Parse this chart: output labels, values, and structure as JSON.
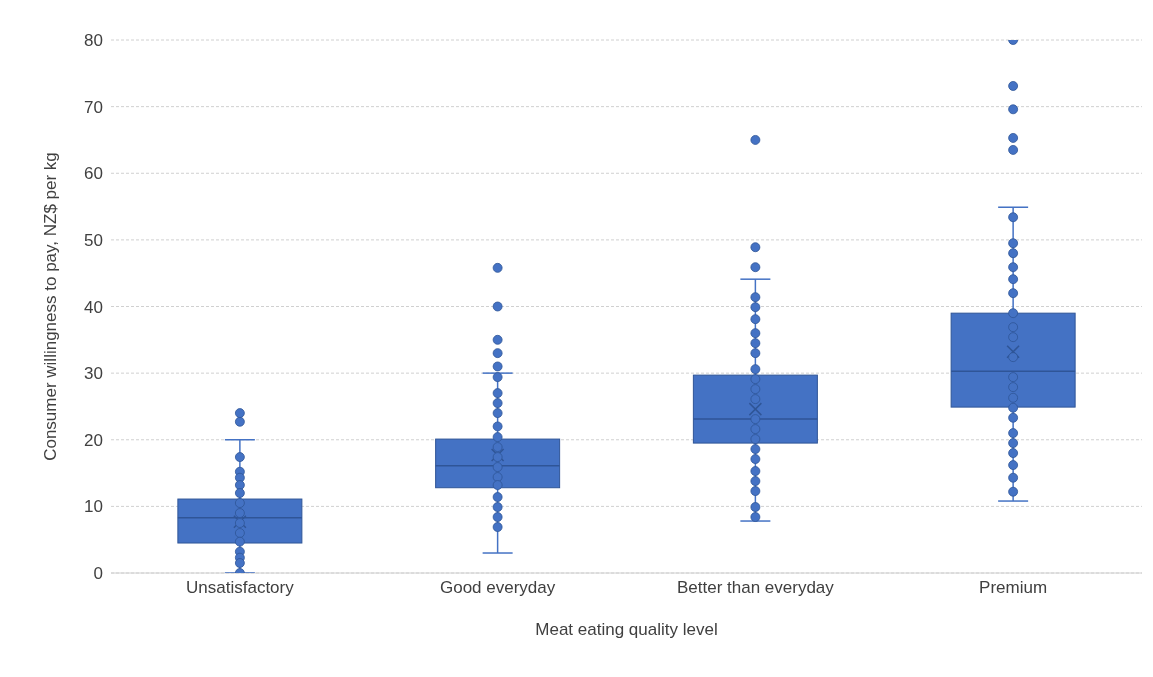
{
  "chart_data": {
    "type": "box",
    "xlabel": "Meat eating quality level",
    "ylabel": "Consumer willingness to pay, NZ$ per kg",
    "categories": [
      "Unsatisfactory",
      "Good everyday",
      "Better than everyday",
      "Premium"
    ],
    "ylim": [
      0,
      80
    ],
    "yticks": [
      0,
      10,
      20,
      30,
      40,
      50,
      60,
      70,
      80
    ],
    "grid": "y",
    "color": "#4472c4",
    "boxes": [
      {
        "low": 0,
        "q1": 4.5,
        "median": 8.3,
        "q3": 11.1,
        "high": 20,
        "mean": 7.7,
        "outliers": [
          22.7,
          24
        ]
      },
      {
        "low": 3,
        "q1": 12.8,
        "median": 16.1,
        "q3": 20.1,
        "high": 30,
        "mean": 17.7,
        "outliers": [
          31,
          33,
          35,
          40,
          45.8
        ]
      },
      {
        "low": 7.8,
        "q1": 19.5,
        "median": 23.1,
        "q3": 29.7,
        "high": 44.1,
        "mean": 24.6,
        "outliers": [
          45.9,
          48.9,
          65
        ]
      },
      {
        "low": 10.8,
        "q1": 24.9,
        "median": 30.3,
        "q3": 39,
        "high": 54.9,
        "mean": 33.2,
        "outliers": [
          63.5,
          65.3,
          69.6,
          73.1,
          80
        ]
      }
    ],
    "series": [
      {
        "type": "scatter",
        "color": "#4472c4",
        "marker": "circle",
        "x": [
          "Unsatisfactory",
          "Unsatisfactory",
          "Unsatisfactory",
          "Unsatisfactory",
          "Unsatisfactory",
          "Unsatisfactory",
          "Unsatisfactory",
          "Unsatisfactory",
          "Unsatisfactory",
          "Unsatisfactory",
          "Unsatisfactory",
          "Unsatisfactory",
          "Unsatisfactory",
          "Unsatisfactory",
          "Good everyday",
          "Good everyday",
          "Good everyday",
          "Good everyday",
          "Good everyday",
          "Good everyday",
          "Good everyday",
          "Good everyday",
          "Good everyday",
          "Good everyday",
          "Good everyday",
          "Good everyday",
          "Good everyday",
          "Good everyday",
          "Good everyday",
          "Better than everyday",
          "Better than everyday",
          "Better than everyday",
          "Better than everyday",
          "Better than everyday",
          "Better than everyday",
          "Better than everyday",
          "Better than everyday",
          "Better than everyday",
          "Better than everyday",
          "Better than everyday",
          "Better than everyday",
          "Better than everyday",
          "Better than everyday",
          "Better than everyday",
          "Better than everyday",
          "Better than everyday",
          "Better than everyday",
          "Better than everyday",
          "Better than everyday",
          "Premium",
          "Premium",
          "Premium",
          "Premium",
          "Premium",
          "Premium",
          "Premium",
          "Premium",
          "Premium",
          "Premium",
          "Premium",
          "Premium",
          "Premium",
          "Premium",
          "Premium",
          "Premium",
          "Premium",
          "Premium",
          "Premium",
          "Premium",
          "Premium"
        ],
        "values": [
          17.4,
          15.2,
          14.3,
          13.2,
          12,
          10.5,
          9,
          7.5,
          6,
          4.7,
          3.2,
          2.3,
          1.5,
          0,
          29.4,
          27,
          25.5,
          24,
          22,
          20.4,
          18.9,
          17.4,
          15.9,
          14.4,
          13.2,
          11.4,
          9.9,
          8.4,
          6.9,
          41.4,
          39.9,
          38.1,
          36,
          34.5,
          33,
          30.6,
          29.1,
          27.6,
          26.1,
          23.1,
          21.6,
          20.1,
          18.6,
          17.1,
          15.3,
          13.8,
          12.3,
          9.9,
          8.4,
          53.4,
          49.5,
          48,
          45.9,
          44.1,
          42,
          39,
          36.9,
          35.4,
          32.4,
          29.4,
          27.9,
          26.3,
          24.8,
          23.3,
          21,
          19.5,
          18,
          16.2,
          14.3,
          12.2
        ]
      }
    ]
  }
}
